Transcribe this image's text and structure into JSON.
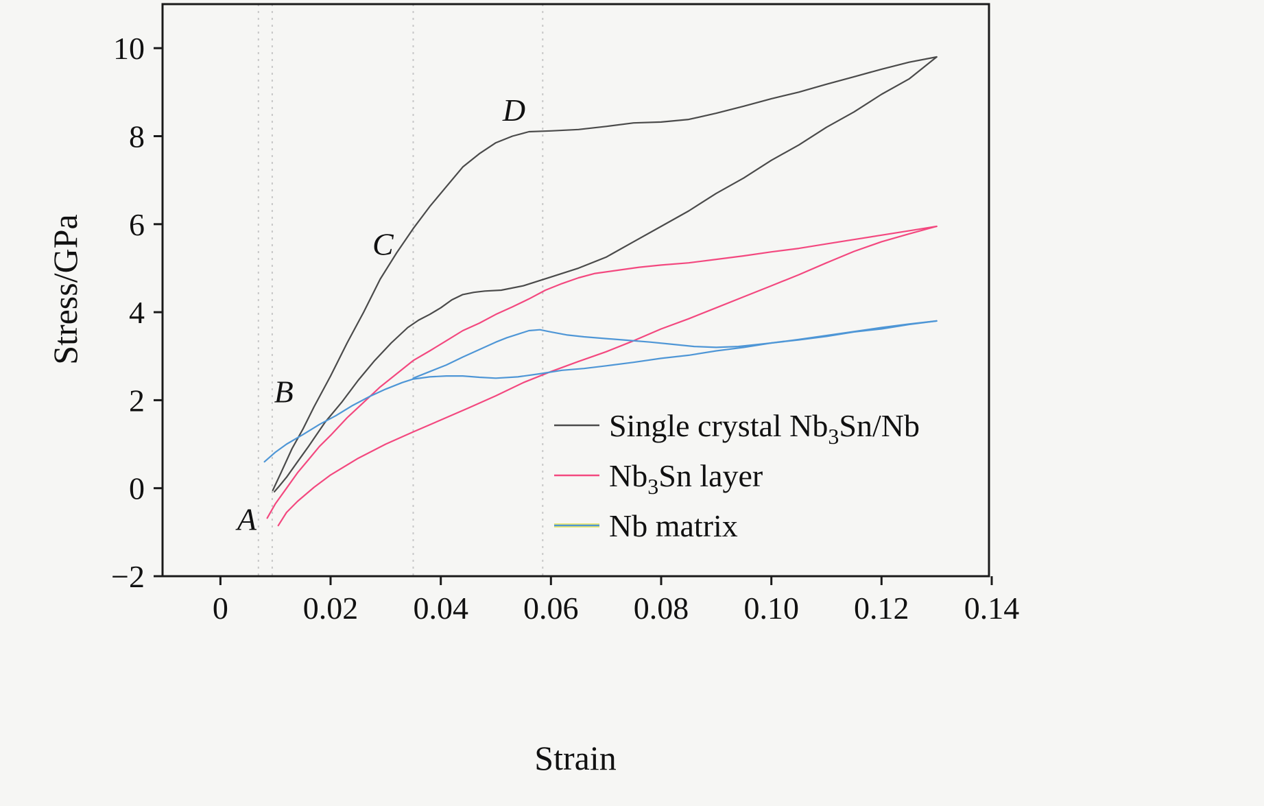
{
  "figure": {
    "background": "#f6f6f4",
    "frame_color": "#1a1a1a"
  },
  "chart_data": {
    "type": "line",
    "title": "",
    "xlabel": "Strain",
    "ylabel": "Stress/GPa",
    "xlim": [
      -0.0105,
      0.1395
    ],
    "ylim": [
      -2,
      11
    ],
    "grid": "off",
    "legend_position": "lower-right-inside",
    "xticks": [
      {
        "v": 0,
        "label": "0"
      },
      {
        "v": 0.02,
        "label": "0.02"
      },
      {
        "v": 0.04,
        "label": "0.04"
      },
      {
        "v": 0.06,
        "label": "0.06"
      },
      {
        "v": 0.08,
        "label": "0.08"
      },
      {
        "v": 0.1,
        "label": "0.10"
      },
      {
        "v": 0.12,
        "label": "0.12"
      },
      {
        "v": 0.14,
        "label": "0.14"
      }
    ],
    "yticks": [
      {
        "v": -2,
        "label": "−2"
      },
      {
        "v": 0,
        "label": "0"
      },
      {
        "v": 2,
        "label": "2"
      },
      {
        "v": 4,
        "label": "4"
      },
      {
        "v": 6,
        "label": "6"
      },
      {
        "v": 8,
        "label": "8"
      },
      {
        "v": 10,
        "label": "10"
      }
    ],
    "guides": {
      "color": "#c7c7c7",
      "positions": [
        0.0069,
        0.0094,
        0.035,
        0.0585
      ]
    },
    "annotations": [
      {
        "text": "A",
        "x": 0.0048,
        "y": -0.95
      },
      {
        "text": "B",
        "x": 0.0115,
        "y": 1.95
      },
      {
        "text": "C",
        "x": 0.0295,
        "y": 5.3
      },
      {
        "text": "D",
        "x": 0.0533,
        "y": 8.35
      }
    ],
    "series": [
      {
        "name": "single-crystal-nb3sn-nb",
        "label": "Single crystal Nb₃Sn/Nb",
        "label_parts": [
          {
            "t": "Single crystal Nb"
          },
          {
            "t": "3",
            "sub": true
          },
          {
            "t": "Sn/Nb"
          }
        ],
        "color": "#4a4a4a",
        "paths": [
          [
            [
              0.0095,
              -0.05
            ],
            [
              0.011,
              0.35
            ],
            [
              0.013,
              0.9
            ],
            [
              0.015,
              1.35
            ],
            [
              0.017,
              1.85
            ],
            [
              0.02,
              2.55
            ],
            [
              0.023,
              3.3
            ],
            [
              0.026,
              4.0
            ],
            [
              0.029,
              4.75
            ],
            [
              0.032,
              5.35
            ],
            [
              0.035,
              5.9
            ],
            [
              0.038,
              6.4
            ],
            [
              0.041,
              6.85
            ],
            [
              0.044,
              7.3
            ],
            [
              0.047,
              7.6
            ],
            [
              0.05,
              7.85
            ],
            [
              0.053,
              8.0
            ],
            [
              0.056,
              8.1
            ],
            [
              0.06,
              8.12
            ],
            [
              0.065,
              8.15
            ],
            [
              0.07,
              8.22
            ],
            [
              0.075,
              8.3
            ],
            [
              0.08,
              8.32
            ],
            [
              0.085,
              8.38
            ],
            [
              0.09,
              8.52
            ],
            [
              0.095,
              8.68
            ],
            [
              0.1,
              8.85
            ],
            [
              0.105,
              9.0
            ],
            [
              0.11,
              9.18
            ],
            [
              0.115,
              9.35
            ],
            [
              0.12,
              9.52
            ],
            [
              0.125,
              9.68
            ],
            [
              0.13,
              9.8
            ]
          ],
          [
            [
              0.13,
              9.8
            ],
            [
              0.125,
              9.3
            ],
            [
              0.12,
              8.95
            ],
            [
              0.115,
              8.55
            ],
            [
              0.11,
              8.2
            ],
            [
              0.105,
              7.8
            ],
            [
              0.1,
              7.45
            ],
            [
              0.095,
              7.05
            ],
            [
              0.09,
              6.7
            ],
            [
              0.085,
              6.3
            ],
            [
              0.08,
              5.95
            ],
            [
              0.075,
              5.6
            ],
            [
              0.07,
              5.25
            ],
            [
              0.065,
              5.0
            ],
            [
              0.06,
              4.8
            ],
            [
              0.055,
              4.6
            ],
            [
              0.051,
              4.5
            ],
            [
              0.048,
              4.48
            ],
            [
              0.046,
              4.45
            ],
            [
              0.044,
              4.4
            ],
            [
              0.042,
              4.28
            ],
            [
              0.04,
              4.1
            ],
            [
              0.038,
              3.95
            ],
            [
              0.036,
              3.82
            ],
            [
              0.034,
              3.65
            ],
            [
              0.031,
              3.3
            ],
            [
              0.028,
              2.9
            ],
            [
              0.025,
              2.45
            ],
            [
              0.022,
              1.95
            ],
            [
              0.019,
              1.5
            ],
            [
              0.016,
              0.95
            ],
            [
              0.014,
              0.6
            ],
            [
              0.012,
              0.25
            ],
            [
              0.0105,
              0.02
            ],
            [
              0.0098,
              -0.08
            ]
          ]
        ]
      },
      {
        "name": "nb3sn-layer",
        "label": "Nb₃Sn layer",
        "label_parts": [
          {
            "t": "Nb"
          },
          {
            "t": "3",
            "sub": true
          },
          {
            "t": "Sn layer"
          }
        ],
        "color": "#f3487f",
        "paths": [
          [
            [
              0.0085,
              -0.68
            ],
            [
              0.01,
              -0.35
            ],
            [
              0.012,
              0.0
            ],
            [
              0.014,
              0.35
            ],
            [
              0.016,
              0.65
            ],
            [
              0.018,
              0.95
            ],
            [
              0.02,
              1.2
            ],
            [
              0.023,
              1.6
            ],
            [
              0.026,
              1.95
            ],
            [
              0.029,
              2.3
            ],
            [
              0.032,
              2.6
            ],
            [
              0.035,
              2.9
            ],
            [
              0.038,
              3.12
            ],
            [
              0.041,
              3.35
            ],
            [
              0.044,
              3.58
            ],
            [
              0.047,
              3.75
            ],
            [
              0.05,
              3.95
            ],
            [
              0.053,
              4.12
            ],
            [
              0.056,
              4.3
            ],
            [
              0.059,
              4.5
            ],
            [
              0.062,
              4.65
            ],
            [
              0.065,
              4.78
            ],
            [
              0.068,
              4.88
            ],
            [
              0.072,
              4.95
            ],
            [
              0.076,
              5.02
            ],
            [
              0.08,
              5.07
            ],
            [
              0.085,
              5.12
            ],
            [
              0.09,
              5.2
            ],
            [
              0.095,
              5.28
            ],
            [
              0.1,
              5.37
            ],
            [
              0.105,
              5.45
            ],
            [
              0.11,
              5.55
            ],
            [
              0.115,
              5.65
            ],
            [
              0.12,
              5.75
            ],
            [
              0.125,
              5.85
            ],
            [
              0.13,
              5.95
            ]
          ],
          [
            [
              0.13,
              5.95
            ],
            [
              0.125,
              5.78
            ],
            [
              0.12,
              5.6
            ],
            [
              0.115,
              5.38
            ],
            [
              0.11,
              5.12
            ],
            [
              0.105,
              4.85
            ],
            [
              0.1,
              4.6
            ],
            [
              0.095,
              4.35
            ],
            [
              0.09,
              4.1
            ],
            [
              0.085,
              3.85
            ],
            [
              0.08,
              3.62
            ],
            [
              0.075,
              3.35
            ],
            [
              0.07,
              3.1
            ],
            [
              0.065,
              2.88
            ],
            [
              0.06,
              2.65
            ],
            [
              0.055,
              2.4
            ],
            [
              0.05,
              2.1
            ],
            [
              0.045,
              1.82
            ],
            [
              0.04,
              1.55
            ],
            [
              0.035,
              1.28
            ],
            [
              0.03,
              1.0
            ],
            [
              0.025,
              0.68
            ],
            [
              0.02,
              0.3
            ],
            [
              0.017,
              0.02
            ],
            [
              0.014,
              -0.3
            ],
            [
              0.012,
              -0.55
            ],
            [
              0.0105,
              -0.85
            ]
          ]
        ]
      },
      {
        "name": "nb-matrix",
        "label": "Nb matrix",
        "label_parts": [
          {
            "t": "Nb matrix"
          }
        ],
        "color": "#4e96d6",
        "color2": "#ece86f",
        "paths": [
          [
            [
              0.008,
              0.6
            ],
            [
              0.01,
              0.82
            ],
            [
              0.012,
              1.0
            ],
            [
              0.015,
              1.22
            ],
            [
              0.018,
              1.45
            ],
            [
              0.021,
              1.65
            ],
            [
              0.024,
              1.88
            ],
            [
              0.027,
              2.08
            ],
            [
              0.03,
              2.25
            ],
            [
              0.033,
              2.4
            ],
            [
              0.035,
              2.48
            ],
            [
              0.038,
              2.53
            ],
            [
              0.041,
              2.55
            ],
            [
              0.044,
              2.55
            ],
            [
              0.047,
              2.52
            ],
            [
              0.05,
              2.5
            ],
            [
              0.054,
              2.53
            ],
            [
              0.058,
              2.6
            ],
            [
              0.062,
              2.68
            ],
            [
              0.066,
              2.72
            ],
            [
              0.07,
              2.78
            ],
            [
              0.075,
              2.86
            ],
            [
              0.08,
              2.95
            ],
            [
              0.085,
              3.02
            ],
            [
              0.09,
              3.12
            ],
            [
              0.095,
              3.2
            ],
            [
              0.1,
              3.3
            ],
            [
              0.105,
              3.38
            ],
            [
              0.11,
              3.47
            ],
            [
              0.115,
              3.56
            ],
            [
              0.12,
              3.65
            ],
            [
              0.125,
              3.73
            ],
            [
              0.13,
              3.8
            ]
          ],
          [
            [
              0.13,
              3.8
            ],
            [
              0.125,
              3.72
            ],
            [
              0.12,
              3.62
            ],
            [
              0.115,
              3.55
            ],
            [
              0.11,
              3.45
            ],
            [
              0.105,
              3.37
            ],
            [
              0.1,
              3.3
            ],
            [
              0.097,
              3.26
            ],
            [
              0.094,
              3.22
            ],
            [
              0.09,
              3.2
            ],
            [
              0.086,
              3.22
            ],
            [
              0.082,
              3.27
            ],
            [
              0.078,
              3.32
            ],
            [
              0.074,
              3.36
            ],
            [
              0.07,
              3.4
            ],
            [
              0.066,
              3.44
            ],
            [
              0.063,
              3.48
            ],
            [
              0.06,
              3.55
            ],
            [
              0.058,
              3.6
            ],
            [
              0.056,
              3.58
            ],
            [
              0.054,
              3.5
            ],
            [
              0.052,
              3.42
            ],
            [
              0.05,
              3.32
            ],
            [
              0.047,
              3.15
            ],
            [
              0.044,
              2.98
            ],
            [
              0.041,
              2.8
            ],
            [
              0.038,
              2.65
            ],
            [
              0.035,
              2.5
            ]
          ]
        ]
      }
    ]
  }
}
